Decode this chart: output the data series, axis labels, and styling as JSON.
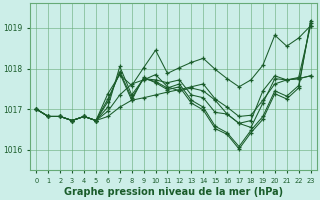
{
  "background_color": "#cceee8",
  "grid_color": "#66aa77",
  "line_color": "#1a5c2a",
  "marker_color": "#1a5c2a",
  "title": "Graphe pression niveau de la mer (hPa)",
  "ylabel_range": [
    1015.5,
    1019.6
  ],
  "yticks": [
    1016,
    1017,
    1018,
    1019
  ],
  "xticks": [
    0,
    1,
    2,
    3,
    4,
    5,
    6,
    7,
    8,
    9,
    10,
    11,
    12,
    13,
    14,
    15,
    16,
    17,
    18,
    19,
    20,
    21,
    22,
    23
  ],
  "series": [
    [
      1017.0,
      1016.82,
      1016.82,
      1016.72,
      1016.82,
      1016.72,
      1016.82,
      1017.05,
      1017.22,
      1017.28,
      1017.35,
      1017.42,
      1017.48,
      1017.55,
      1017.62,
      1017.25,
      1017.05,
      1016.82,
      1016.85,
      1017.22,
      1017.62,
      1017.72,
      1017.75,
      1017.82
    ],
    [
      1017.0,
      1016.82,
      1016.82,
      1016.72,
      1016.82,
      1016.72,
      1016.95,
      1017.35,
      1017.62,
      1017.72,
      1017.85,
      1017.55,
      1017.45,
      1017.52,
      1017.45,
      1017.22,
      1016.88,
      1016.65,
      1016.72,
      1017.45,
      1017.82,
      1017.72,
      1017.75,
      1017.82
    ],
    [
      1017.0,
      1016.82,
      1016.82,
      1016.72,
      1016.82,
      1016.72,
      1017.05,
      1018.05,
      1017.35,
      1017.75,
      1017.72,
      1017.65,
      1017.72,
      1017.35,
      1017.28,
      1016.92,
      1016.88,
      1016.65,
      1016.55,
      1017.15,
      1017.75,
      1017.72,
      1017.78,
      1019.05
    ],
    [
      1017.0,
      1016.82,
      1016.82,
      1016.72,
      1016.82,
      1016.72,
      1017.18,
      1017.92,
      1017.28,
      1017.75,
      1017.68,
      1017.52,
      1017.62,
      1017.22,
      1017.05,
      1016.58,
      1016.42,
      1016.08,
      1016.48,
      1016.82,
      1017.45,
      1017.32,
      1017.58,
      1019.12
    ],
    [
      1017.0,
      1016.82,
      1016.82,
      1016.72,
      1016.82,
      1016.72,
      1017.25,
      1017.88,
      1017.22,
      1017.78,
      1017.65,
      1017.48,
      1017.55,
      1017.15,
      1016.98,
      1016.52,
      1016.38,
      1016.02,
      1016.42,
      1016.75,
      1017.38,
      1017.25,
      1017.52,
      1019.18
    ],
    [
      1017.0,
      1016.82,
      1016.82,
      1016.72,
      1016.82,
      1016.72,
      1017.38,
      1017.85,
      1017.58,
      1018.02,
      1018.45,
      1017.88,
      1018.02,
      1018.15,
      1018.25,
      1017.98,
      1017.75,
      1017.55,
      1017.72,
      1018.08,
      1018.82,
      1018.55,
      1018.75,
      1019.05
    ]
  ]
}
